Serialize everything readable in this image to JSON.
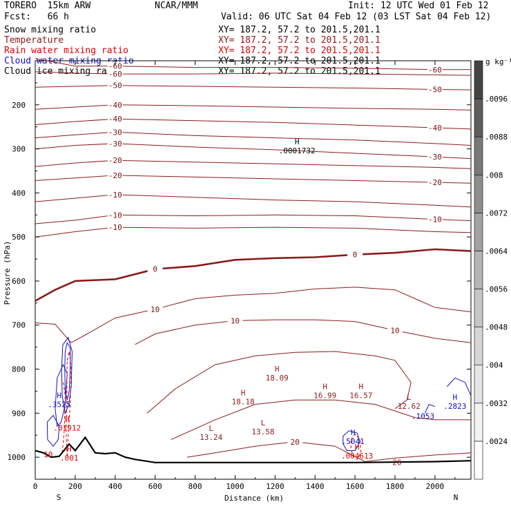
{
  "header": {
    "model": "TORERO  15km ARW",
    "forecast": "Fcst:   66 h",
    "center": "NCAR/MMM",
    "init": "Init: 12 UTC Wed 01 Feb 12",
    "valid": "Valid: 06 UTC Sat 04 Feb 12 (03 LST Sat 04 Feb 12)"
  },
  "fields": [
    {
      "name": "Snow mixing ratio",
      "color": "#000000",
      "xy": "XY= 187.2, 57.2 to 201.5,201.1"
    },
    {
      "name": "Temperature",
      "color": "#8b1a1a",
      "xy": "XY= 187.2, 57.2 to 201.5,201.1"
    },
    {
      "name": "Rain water mixing ratio",
      "color": "#dd0000",
      "xy": "XY= 187.2, 57.2 to 201.5,201.1"
    },
    {
      "name": "Cloud water mixing ratio",
      "color": "#1010c0",
      "xy": "XY= 187.2, 57.2 to 201.5,201.1"
    },
    {
      "name": "Cloud ice mixing ratio",
      "color": "#000000",
      "xy": "XY= 187.2, 57.2 to 201.5,201.1"
    }
  ],
  "chart_data": {
    "type": "contour",
    "xlabel": "Distance (km)",
    "ylabel": "Pressure (hPa)",
    "xlim": [
      0,
      2180
    ],
    "ylim": [
      1050,
      100
    ],
    "x_ticks": [
      0,
      200,
      400,
      600,
      800,
      1000,
      1200,
      1400,
      1600,
      1800,
      2000
    ],
    "y_ticks": [
      200,
      300,
      400,
      500,
      600,
      700,
      800,
      900,
      1000
    ],
    "axis_ends": {
      "left": "S",
      "right": "N"
    },
    "colorbar": {
      "unit": "g kg⁻¹",
      "levels": [
        ".0024",
        ".0032",
        ".004",
        ".0048",
        ".0056",
        ".0064",
        ".0072",
        ".008",
        ".0088",
        ".0096"
      ],
      "colors": [
        "#ffffff",
        "#f3f3f3",
        "#e5e5e5",
        "#d6d6d6",
        "#c6c6c6",
        "#b5b5b5",
        "#a2a2a2",
        "#8e8e8e",
        "#787878",
        "#5e5e5e",
        "#444444"
      ]
    },
    "temperature_contours": [
      {
        "label": "-60",
        "points": [
          [
            0,
            95
          ],
          [
            200,
            112
          ],
          [
            400,
            112
          ],
          [
            800,
            115
          ],
          [
            1200,
            115
          ],
          [
            1600,
            117
          ],
          [
            2000,
            120
          ],
          [
            2180,
            120
          ]
        ]
      },
      {
        "label": "-60",
        "points": [
          [
            0,
            125
          ],
          [
            200,
            128
          ],
          [
            400,
            130
          ],
          [
            800,
            130
          ],
          [
            1200,
            128
          ],
          [
            1600,
            130
          ],
          [
            2000,
            132
          ],
          [
            2180,
            133
          ]
        ]
      },
      {
        "label": "-50",
        "points": [
          [
            0,
            160
          ],
          [
            200,
            158
          ],
          [
            400,
            156
          ],
          [
            800,
            158
          ],
          [
            1200,
            160
          ],
          [
            1600,
            162
          ],
          [
            2000,
            165
          ],
          [
            2180,
            166
          ]
        ]
      },
      {
        "label": "-40",
        "points": [
          [
            0,
            210
          ],
          [
            200,
            205
          ],
          [
            400,
            200
          ],
          [
            800,
            202
          ],
          [
            1200,
            205
          ],
          [
            1600,
            208
          ],
          [
            2000,
            210
          ],
          [
            2180,
            212
          ]
        ]
      },
      {
        "label": "-40",
        "points": [
          [
            0,
            245
          ],
          [
            200,
            238
          ],
          [
            400,
            232
          ],
          [
            800,
            236
          ],
          [
            1200,
            240
          ],
          [
            1600,
            246
          ],
          [
            2000,
            252
          ],
          [
            2180,
            255
          ]
        ]
      },
      {
        "label": "-30",
        "points": [
          [
            0,
            275
          ],
          [
            200,
            268
          ],
          [
            400,
            262
          ],
          [
            800,
            270
          ],
          [
            1200,
            275
          ],
          [
            1600,
            280
          ],
          [
            2000,
            288
          ],
          [
            2180,
            292
          ]
        ]
      },
      {
        "label": "-30",
        "points": [
          [
            0,
            300
          ],
          [
            200,
            292
          ],
          [
            400,
            288
          ],
          [
            800,
            296
          ],
          [
            1200,
            302
          ],
          [
            1600,
            310
          ],
          [
            2000,
            318
          ],
          [
            2180,
            322
          ]
        ]
      },
      {
        "label": "-20",
        "points": [
          [
            0,
            340
          ],
          [
            200,
            332
          ],
          [
            400,
            326
          ],
          [
            800,
            330
          ],
          [
            1200,
            334
          ],
          [
            1600,
            338
          ],
          [
            2000,
            342
          ],
          [
            2180,
            345
          ]
        ]
      },
      {
        "label": "-20",
        "points": [
          [
            0,
            372
          ],
          [
            200,
            366
          ],
          [
            400,
            360
          ],
          [
            800,
            364
          ],
          [
            1200,
            368
          ],
          [
            1600,
            372
          ],
          [
            2000,
            376
          ],
          [
            2180,
            378
          ]
        ]
      },
      {
        "label": "-10",
        "points": [
          [
            0,
            420
          ],
          [
            200,
            412
          ],
          [
            400,
            404
          ],
          [
            800,
            410
          ],
          [
            1200,
            416
          ],
          [
            1600,
            420
          ],
          [
            2000,
            428
          ],
          [
            2180,
            432
          ]
        ]
      },
      {
        "label": "-10",
        "points": [
          [
            0,
            470
          ],
          [
            200,
            462
          ],
          [
            400,
            450
          ],
          [
            800,
            452
          ],
          [
            1200,
            450
          ],
          [
            1600,
            452
          ],
          [
            2000,
            460
          ],
          [
            2180,
            463
          ]
        ]
      },
      {
        "label": "-10",
        "points": [
          [
            0,
            500
          ],
          [
            200,
            488
          ],
          [
            400,
            478
          ],
          [
            800,
            480
          ],
          [
            1200,
            478
          ],
          [
            1600,
            480
          ],
          [
            2000,
            488
          ],
          [
            2180,
            490
          ]
        ]
      },
      {
        "label": "0",
        "points": [
          [
            0,
            645
          ],
          [
            100,
            620
          ],
          [
            200,
            600
          ],
          [
            400,
            596
          ],
          [
            600,
            573
          ],
          [
            800,
            566
          ],
          [
            1000,
            552
          ],
          [
            1200,
            548
          ],
          [
            1400,
            546
          ],
          [
            1600,
            540
          ],
          [
            1800,
            536
          ],
          [
            2000,
            528
          ],
          [
            2180,
            532
          ]
        ]
      },
      {
        "label": "10",
        "points": [
          [
            0,
            695
          ],
          [
            100,
            698
          ],
          [
            180,
            740
          ],
          [
            260,
            720
          ],
          [
            400,
            684
          ],
          [
            600,
            664
          ],
          [
            800,
            640
          ],
          [
            1000,
            632
          ],
          [
            1200,
            628
          ],
          [
            1400,
            618
          ],
          [
            1600,
            614
          ],
          [
            1800,
            620
          ],
          [
            1900,
            640
          ],
          [
            2000,
            660
          ],
          [
            2180,
            670
          ]
        ]
      },
      {
        "label": "10",
        "points": [
          [
            500,
            744
          ],
          [
            600,
            720
          ],
          [
            800,
            700
          ],
          [
            1000,
            690
          ],
          [
            1200,
            688
          ],
          [
            1400,
            688
          ],
          [
            1600,
            692
          ],
          [
            1800,
            712
          ],
          [
            2000,
            730
          ],
          [
            2180,
            740
          ]
        ]
      },
      {
        "label": "",
        "points": [
          [
            560,
            900
          ],
          [
            700,
            845
          ],
          [
            900,
            790
          ],
          [
            1100,
            770
          ],
          [
            1300,
            762
          ],
          [
            1500,
            760
          ],
          [
            1700,
            770
          ],
          [
            1800,
            780
          ],
          [
            1880,
            830
          ],
          [
            1860,
            870
          ],
          [
            1800,
            890
          ]
        ]
      },
      {
        "label": "",
        "points": [
          [
            680,
            960
          ],
          [
            900,
            915
          ],
          [
            1100,
            880
          ],
          [
            1300,
            870
          ],
          [
            1500,
            870
          ],
          [
            1700,
            880
          ],
          [
            1800,
            895
          ],
          [
            1900,
            910
          ],
          [
            2000,
            915
          ],
          [
            2180,
            915
          ]
        ]
      },
      {
        "label": "20",
        "points": [
          [
            760,
            1000
          ],
          [
            900,
            990
          ],
          [
            1100,
            975
          ],
          [
            1300,
            965
          ],
          [
            1500,
            975
          ],
          [
            1650,
            1010
          ],
          [
            1800,
            1002
          ],
          [
            2000,
            995
          ],
          [
            2180,
            990
          ]
        ]
      }
    ],
    "terrain": [
      [
        0,
        985
      ],
      [
        40,
        990
      ],
      [
        80,
        1000
      ],
      [
        120,
        998
      ],
      [
        170,
        970
      ],
      [
        200,
        985
      ],
      [
        250,
        955
      ],
      [
        300,
        990
      ],
      [
        350,
        992
      ],
      [
        400,
        990
      ],
      [
        450,
        1000
      ],
      [
        500,
        1005
      ],
      [
        600,
        1012
      ],
      [
        800,
        1012
      ],
      [
        1200,
        1012
      ],
      [
        1600,
        1012
      ],
      [
        2000,
        1010
      ],
      [
        2180,
        1008
      ]
    ],
    "extrema": [
      {
        "type": "H",
        "value": ".0001732",
        "x": 1310,
        "p": 302,
        "color": "#000000"
      },
      {
        "type": "H",
        "value": "18.09",
        "x": 1210,
        "p": 818,
        "color": "#8b1a1a"
      },
      {
        "type": "H",
        "value": "18.18",
        "x": 1040,
        "p": 872,
        "color": "#8b1a1a"
      },
      {
        "type": "H",
        "value": "16.99",
        "x": 1450,
        "p": 858,
        "color": "#8b1a1a"
      },
      {
        "type": "H",
        "value": "16.57",
        "x": 1630,
        "p": 858,
        "color": "#8b1a1a"
      },
      {
        "type": "L",
        "value": "12.62",
        "x": 1870,
        "p": 882,
        "color": "#8b1a1a"
      },
      {
        "type": "L",
        "value": "13.24",
        "x": 880,
        "p": 953,
        "color": "#8b1a1a"
      },
      {
        "type": "L",
        "value": "13.58",
        "x": 1140,
        "p": 940,
        "color": "#8b1a1a"
      },
      {
        "type": "H",
        "value": ".3525",
        "x": 120,
        "p": 878,
        "color": "#1010c0"
      },
      {
        "type": "H",
        "value": ".01912",
        "x": 160,
        "p": 932,
        "color": "#dd0000"
      },
      {
        "type": "H",
        "value": ".001",
        "x": 170,
        "p": 1000,
        "color": "#dd0000"
      },
      {
        "type": "H",
        "value": ".5041",
        "x": 1590,
        "p": 962,
        "color": "#1010c0"
      },
      {
        "type": "H",
        "value": ".004613",
        "x": 1610,
        "p": 995,
        "color": "#dd0000"
      },
      {
        "type": "",
        "value": ".1053",
        "x": 1940,
        "p": 905,
        "color": "#1010c0"
      },
      {
        "type": "H",
        "value": ".2823",
        "x": 2100,
        "p": 882,
        "color": "#1010c0"
      },
      {
        "type": "",
        "value": "10",
        "x": 65,
        "p": 992,
        "color": "#dd0000"
      },
      {
        "type": "",
        "value": "20",
        "x": 1810,
        "p": 1010,
        "color": "#8b1a1a"
      }
    ]
  }
}
